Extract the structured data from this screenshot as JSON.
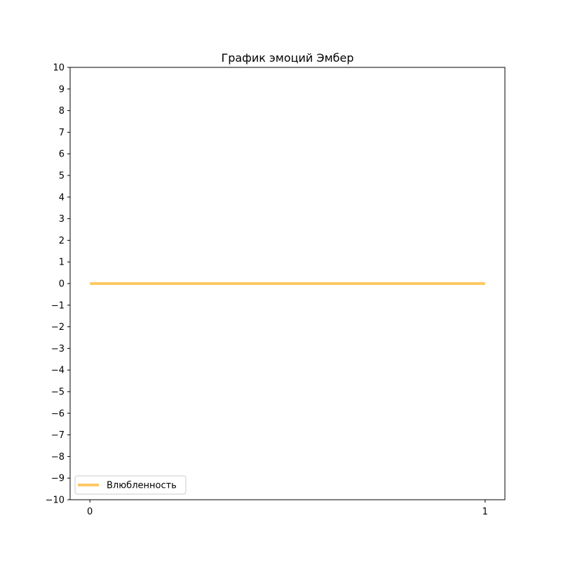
{
  "chart_data": {
    "type": "line",
    "title": "График эмоций Эмбер",
    "xlabel": "",
    "ylabel": "",
    "x": [
      0,
      1
    ],
    "x_ticks": [
      "0",
      "1"
    ],
    "xlim": [
      -0.05,
      1.05
    ],
    "ylim": [
      -10,
      10
    ],
    "y_ticks": [
      "−10",
      "−9",
      "−8",
      "−7",
      "−6",
      "−5",
      "−4",
      "−3",
      "−2",
      "−1",
      "0",
      "1",
      "2",
      "3",
      "4",
      "5",
      "6",
      "7",
      "8",
      "9",
      "10"
    ],
    "grid": false,
    "legend_position": "lower-left",
    "series": [
      {
        "name": "Влюбленность",
        "values": [
          0,
          0
        ],
        "color": "#ffc966"
      }
    ]
  }
}
